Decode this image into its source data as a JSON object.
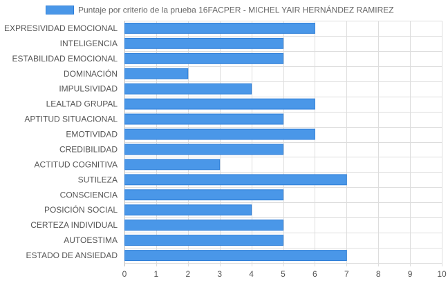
{
  "chart_data": {
    "type": "bar",
    "orientation": "horizontal",
    "categories": [
      "EXPRESIVIDAD EMOCIONAL",
      "INTELIGENCIA",
      "ESTABILIDAD EMOCIONAL",
      "DOMINACIÓN",
      "IMPULSIVIDAD",
      "LEALTAD GRUPAL",
      "APTITUD SITUACIONAL",
      "EMOTIVIDAD",
      "CREDIBILIDAD",
      "ACTITUD COGNITIVA",
      "SUTILEZA",
      "CONSCIENCIA",
      "POSICIÓN SOCIAL",
      "CERTEZA INDIVIDUAL",
      "AUTOESTIMA",
      "ESTADO DE ANSIEDAD"
    ],
    "series": [
      {
        "name": "Puntaje por criterio de la prueba 16FACPER - MICHEL YAIR HERNÁNDEZ RAMIREZ",
        "values": [
          6,
          5,
          5,
          2,
          4,
          6,
          5,
          6,
          5,
          3,
          7,
          5,
          4,
          5,
          5,
          7
        ]
      }
    ],
    "xlim": [
      0,
      10
    ],
    "xticks": [
      "0",
      "1",
      "2",
      "3",
      "4",
      "5",
      "6",
      "7",
      "8",
      "9",
      "10"
    ],
    "grid": true,
    "legend_position": "top",
    "colors": {
      "bar_fill": "#4A97E8",
      "bar_border": "#2F7FD8",
      "grid": "#dddddd",
      "axis": "#bbbbbb"
    }
  }
}
